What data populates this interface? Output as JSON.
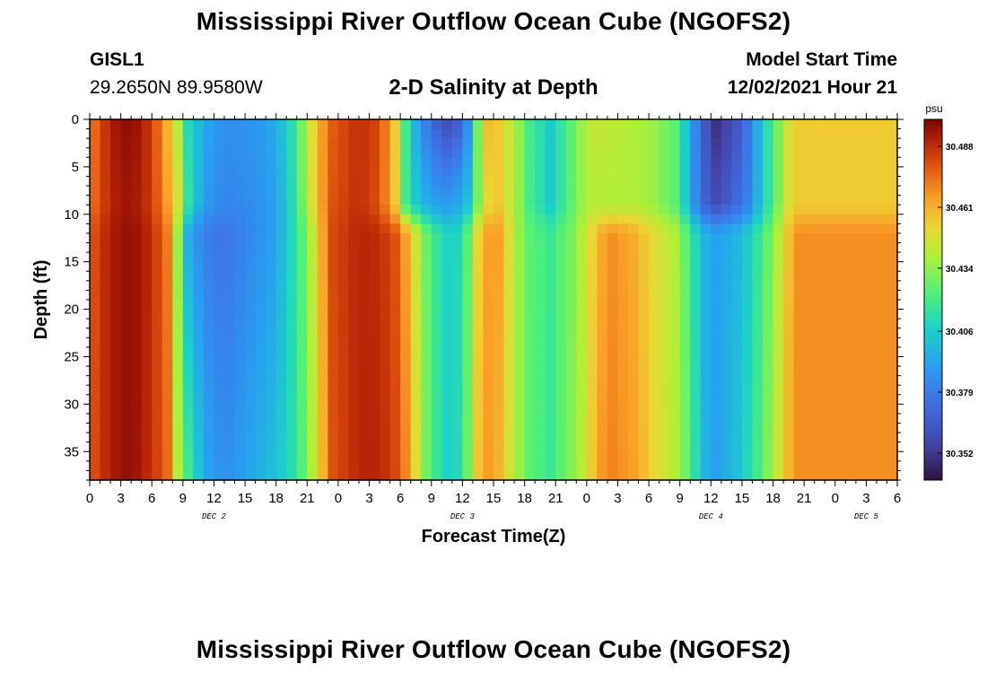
{
  "header": {
    "title": "Mississippi River Outflow Ocean Cube (NGOFS2)",
    "station_id": "GISL1",
    "station_coords": "29.2650N  89.9580W",
    "subtitle": "2-D Salinity at Depth",
    "model_start_label": "Model Start Time",
    "model_start_value": "12/02/2021 Hour 21"
  },
  "footer": {
    "repeated_title": "Mississippi River Outflow Ocean Cube (NGOFS2)"
  },
  "chart_data": {
    "type": "heatmap",
    "title": "2-D Salinity at Depth",
    "xlabel": "Forecast Time(Z)",
    "ylabel": "Depth (ft)",
    "x_hours_range": [
      0,
      78
    ],
    "ylim": [
      0,
      38
    ],
    "y_ticks": [
      0,
      5,
      10,
      15,
      20,
      25,
      30,
      35
    ],
    "x_tick_labels": [
      "0",
      "3",
      "6",
      "9",
      "12",
      "15",
      "18",
      "21",
      "0",
      "3",
      "6",
      "9",
      "12",
      "15",
      "18",
      "21",
      "0",
      "3",
      "6",
      "9",
      "12",
      "15",
      "18",
      "21",
      "0",
      "3",
      "6"
    ],
    "day_labels": [
      {
        "hour": 12,
        "label": "DEC 2"
      },
      {
        "hour": 36,
        "label": "DEC 3"
      },
      {
        "hour": 60,
        "label": "DEC 4"
      },
      {
        "hour": 75,
        "label": "DEC 5"
      }
    ],
    "colorbar": {
      "unit": "psu",
      "min": 30.34,
      "max": 30.5,
      "tick_values": [
        30.352,
        30.379,
        30.406,
        30.434,
        30.461,
        30.488
      ],
      "tick_labels": [
        "30.352",
        "30.379",
        "30.406",
        "30.434",
        "30.461",
        "30.488"
      ]
    },
    "anchor_depths": [
      0,
      9,
      12,
      38
    ],
    "columns": [
      {
        "h": 0,
        "s": [
          30.47,
          30.472,
          30.478,
          30.478
        ]
      },
      {
        "h": 2,
        "s": [
          30.492,
          30.49,
          30.492,
          30.492
        ]
      },
      {
        "h": 4,
        "s": [
          30.498,
          30.495,
          30.497,
          30.497
        ]
      },
      {
        "h": 6,
        "s": [
          30.485,
          30.485,
          30.488,
          30.487
        ]
      },
      {
        "h": 7.5,
        "s": [
          30.46,
          30.465,
          30.472,
          30.475
        ]
      },
      {
        "h": 8.5,
        "s": [
          30.44,
          30.448,
          30.435,
          30.44
        ]
      },
      {
        "h": 9.5,
        "s": [
          30.41,
          30.415,
          30.395,
          30.42
        ]
      },
      {
        "h": 11,
        "s": [
          30.395,
          30.39,
          30.38,
          30.395
        ]
      },
      {
        "h": 13,
        "s": [
          30.385,
          30.382,
          30.375,
          30.385
        ]
      },
      {
        "h": 16,
        "s": [
          30.388,
          30.385,
          30.385,
          30.395
        ]
      },
      {
        "h": 18,
        "s": [
          30.395,
          30.392,
          30.392,
          30.403
        ]
      },
      {
        "h": 19.5,
        "s": [
          30.412,
          30.41,
          30.41,
          30.412
        ]
      },
      {
        "h": 21,
        "s": [
          30.44,
          30.438,
          30.43,
          30.43
        ]
      },
      {
        "h": 22,
        "s": [
          30.46,
          30.46,
          30.455,
          30.45
        ]
      },
      {
        "h": 23.5,
        "s": [
          30.478,
          30.48,
          30.482,
          30.48
        ]
      },
      {
        "h": 26,
        "s": [
          30.488,
          30.488,
          30.49,
          30.49
        ]
      },
      {
        "h": 28,
        "s": [
          30.482,
          30.48,
          30.488,
          30.49
        ]
      },
      {
        "h": 29.5,
        "s": [
          30.455,
          30.455,
          30.48,
          30.482
        ]
      },
      {
        "h": 30.5,
        "s": [
          30.42,
          30.42,
          30.465,
          30.47
        ]
      },
      {
        "h": 31.5,
        "s": [
          30.395,
          30.405,
          30.445,
          30.45
        ]
      },
      {
        "h": 33,
        "s": [
          30.37,
          30.392,
          30.42,
          30.42
        ]
      },
      {
        "h": 34.5,
        "s": [
          30.36,
          30.39,
          30.408,
          30.408
        ]
      },
      {
        "h": 36,
        "s": [
          30.368,
          30.395,
          30.41,
          30.412
        ]
      },
      {
        "h": 37,
        "s": [
          30.4,
          30.41,
          30.44,
          30.445
        ]
      },
      {
        "h": 38,
        "s": [
          30.46,
          30.45,
          30.465,
          30.468
        ]
      },
      {
        "h": 39.5,
        "s": [
          30.455,
          30.455,
          30.465,
          30.46
        ]
      },
      {
        "h": 41,
        "s": [
          30.44,
          30.44,
          30.44,
          30.44
        ]
      },
      {
        "h": 42.5,
        "s": [
          30.42,
          30.42,
          30.425,
          30.425
        ]
      },
      {
        "h": 44.5,
        "s": [
          30.405,
          30.405,
          30.418,
          30.418
        ]
      },
      {
        "h": 46.5,
        "s": [
          30.425,
          30.425,
          30.43,
          30.432
        ]
      },
      {
        "h": 48,
        "s": [
          30.44,
          30.44,
          30.445,
          30.445
        ]
      },
      {
        "h": 49,
        "s": [
          30.445,
          30.44,
          30.46,
          30.465
        ]
      },
      {
        "h": 50.5,
        "s": [
          30.442,
          30.44,
          30.468,
          30.47
        ]
      },
      {
        "h": 52.5,
        "s": [
          30.44,
          30.44,
          30.462,
          30.465
        ]
      },
      {
        "h": 54.5,
        "s": [
          30.435,
          30.435,
          30.45,
          30.452
        ]
      },
      {
        "h": 56.5,
        "s": [
          30.425,
          30.425,
          30.44,
          30.44
        ]
      },
      {
        "h": 58,
        "s": [
          30.395,
          30.395,
          30.42,
          30.425
        ]
      },
      {
        "h": 59,
        "s": [
          30.37,
          30.372,
          30.4,
          30.4
        ]
      },
      {
        "h": 60.5,
        "s": [
          30.35,
          30.36,
          30.392,
          30.392
        ]
      },
      {
        "h": 62,
        "s": [
          30.358,
          30.368,
          30.395,
          30.398
        ]
      },
      {
        "h": 63.5,
        "s": [
          30.375,
          30.38,
          30.405,
          30.41
        ]
      },
      {
        "h": 65,
        "s": [
          30.405,
          30.405,
          30.42,
          30.425
        ]
      },
      {
        "h": 66.5,
        "s": [
          30.43,
          30.43,
          30.44,
          30.445
        ]
      },
      {
        "h": 67.5,
        "s": [
          30.448,
          30.448,
          30.458,
          30.46
        ]
      },
      {
        "h": 68,
        "s": [
          30.455,
          30.455,
          30.468,
          30.468
        ]
      }
    ]
  }
}
